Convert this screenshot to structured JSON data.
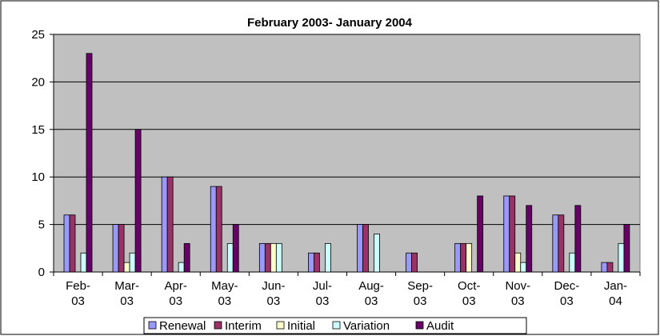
{
  "chart_data": {
    "type": "bar",
    "title": "February 2003- January 2004",
    "xlabel": "",
    "ylabel": "",
    "ylim": [
      0,
      25
    ],
    "yticks": [
      0,
      5,
      10,
      15,
      20,
      25
    ],
    "grid": true,
    "legend_position": "bottom",
    "categories": [
      [
        "Feb-",
        "03"
      ],
      [
        "Mar-",
        "03"
      ],
      [
        "Apr-",
        "03"
      ],
      [
        "May-",
        "03"
      ],
      [
        "Jun-",
        "03"
      ],
      [
        "Jul-",
        "03"
      ],
      [
        "Aug-",
        "03"
      ],
      [
        "Sep-",
        "03"
      ],
      [
        "Oct-",
        "03"
      ],
      [
        "Nov-",
        "03"
      ],
      [
        "Dec-",
        "03"
      ],
      [
        "Jan-",
        "04"
      ]
    ],
    "series": [
      {
        "name": "Renewal",
        "color": "#9999FF",
        "values": [
          6,
          5,
          10,
          9,
          3,
          2,
          5,
          2,
          3,
          8,
          6,
          1
        ]
      },
      {
        "name": "Interim",
        "color": "#993366",
        "values": [
          6,
          5,
          10,
          9,
          3,
          2,
          5,
          2,
          3,
          8,
          6,
          1
        ]
      },
      {
        "name": "Initial",
        "color": "#FFFFCC",
        "values": [
          0,
          1,
          0,
          0,
          3,
          0,
          0,
          0,
          3,
          2,
          0,
          0
        ]
      },
      {
        "name": "Variation",
        "color": "#CCFFFF",
        "values": [
          2,
          2,
          1,
          3,
          3,
          3,
          4,
          0,
          0,
          1,
          2,
          3
        ]
      },
      {
        "name": "Audit",
        "color": "#660066",
        "values": [
          23,
          15,
          3,
          5,
          0,
          0,
          0,
          0,
          8,
          7,
          7,
          5
        ]
      }
    ],
    "plot_background": "#C0C0C0"
  }
}
